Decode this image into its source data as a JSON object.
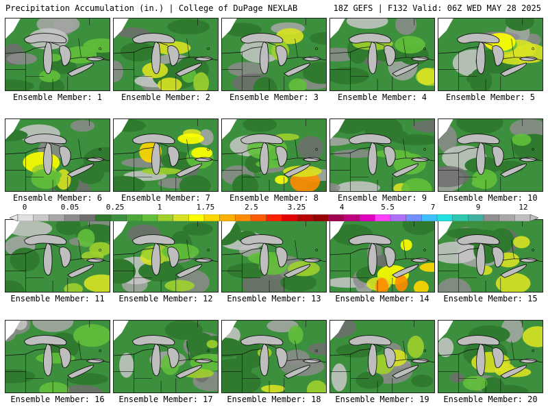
{
  "header": {
    "left": "Precipitation Accumulation (in.) | College of DuPage NEXLAB",
    "right": "18Z GEFS | F132 Valid: 06Z WED MAY 28 2025"
  },
  "members": [
    {
      "label": "Ensemble Member: 1",
      "intensity": 0.3
    },
    {
      "label": "Ensemble Member: 2",
      "intensity": 0.55
    },
    {
      "label": "Ensemble Member: 3",
      "intensity": 0.4
    },
    {
      "label": "Ensemble Member: 4",
      "intensity": 0.35
    },
    {
      "label": "Ensemble Member: 5",
      "intensity": 0.5
    },
    {
      "label": "Ensemble Member: 6",
      "intensity": 0.45
    },
    {
      "label": "Ensemble Member: 7",
      "intensity": 0.65
    },
    {
      "label": "Ensemble Member: 8",
      "intensity": 0.7
    },
    {
      "label": "Ensemble Member: 9",
      "intensity": 0.3
    },
    {
      "label": "Ensemble Member: 10",
      "intensity": 0.15
    },
    {
      "label": "Ensemble Member: 11",
      "intensity": 0.45
    },
    {
      "label": "Ensemble Member: 12",
      "intensity": 0.35
    },
    {
      "label": "Ensemble Member: 13",
      "intensity": 0.2
    },
    {
      "label": "Ensemble Member: 14",
      "intensity": 0.75
    },
    {
      "label": "Ensemble Member: 15",
      "intensity": 0.4
    },
    {
      "label": "Ensemble Member: 16",
      "intensity": 0.2
    },
    {
      "label": "Ensemble Member: 17",
      "intensity": 0.25
    },
    {
      "label": "Ensemble Member: 18",
      "intensity": 0.3
    },
    {
      "label": "Ensemble Member: 19",
      "intensity": 0.4
    },
    {
      "label": "Ensemble Member: 20",
      "intensity": 0.55
    }
  ],
  "colorbar": {
    "tick_labels": [
      "0",
      "0.05",
      "0.25",
      "1",
      "1.75",
      "2.5",
      "3.25",
      "4",
      "5.5",
      "7",
      "9",
      "12"
    ],
    "colors": [
      "#e0e0e0",
      "#c8c8c8",
      "#a8a8a8",
      "#8c8c8c",
      "#6e6e6e",
      "#2f7a2f",
      "#3c8f3c",
      "#4aa83a",
      "#62bf3a",
      "#9ed02c",
      "#d8e224",
      "#ffff00",
      "#ffd700",
      "#ffb000",
      "#ff8c00",
      "#ff5a00",
      "#ff2000",
      "#e00000",
      "#b80000",
      "#980000",
      "#a00050",
      "#c0007a",
      "#e000c0",
      "#ff40ff",
      "#b070ff",
      "#7090ff",
      "#40c0ff",
      "#20e0e0",
      "#30c8b0",
      "#40b0a0",
      "#909090",
      "#a8a8a8",
      "#bebebe"
    ]
  }
}
